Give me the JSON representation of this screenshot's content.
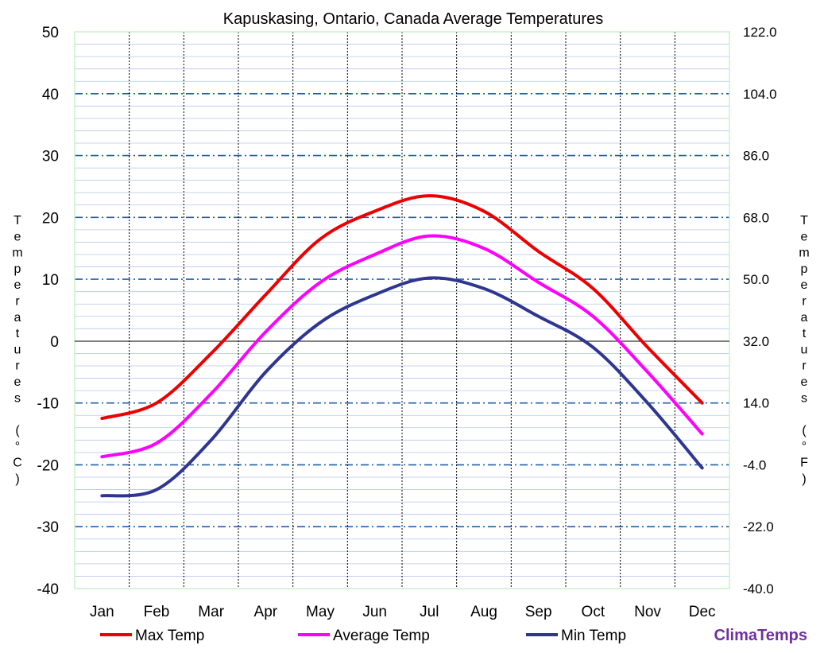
{
  "chart_data": {
    "type": "line",
    "title": "Kapuskasing, Ontario, Canada Average Temperatures",
    "categories": [
      "Jan",
      "Feb",
      "Mar",
      "Apr",
      "May",
      "Jun",
      "Jul",
      "Aug",
      "Sep",
      "Oct",
      "Nov",
      "Dec"
    ],
    "series": [
      {
        "name": "Max Temp",
        "color": "#ee0000",
        "values": [
          -12.5,
          -10,
          -2,
          7.5,
          16.5,
          21,
          23.5,
          21,
          14.5,
          8.5,
          -1,
          -10
        ]
      },
      {
        "name": "Average Temp",
        "color": "#ff00ff",
        "values": [
          -18.7,
          -16.5,
          -8.5,
          1.5,
          9.5,
          14,
          17,
          15,
          9.5,
          4,
          -5,
          -15
        ]
      },
      {
        "name": "Min Temp",
        "color": "#2e3690",
        "values": [
          -25,
          -24,
          -16,
          -5,
          3,
          7.5,
          10.2,
          8.5,
          4,
          -1,
          -10,
          -20.5
        ]
      }
    ],
    "ylabel": "Temperatures (°C)",
    "ylabel_right": "Temperatures (°F)",
    "ylim": [
      -40,
      50
    ],
    "yticks": [
      "50",
      "40",
      "30",
      "20",
      "10",
      "0",
      "-10",
      "-20",
      "-30",
      "-40"
    ],
    "yticks_right": [
      "122.0",
      "104.0",
      "86.0",
      "68.0",
      "50.0",
      "32.0",
      "14.0",
      "-4.0",
      "-22.0",
      "-40.0"
    ],
    "grid": true,
    "legend": "bottom",
    "brand": {
      "text": "ClimaTemps",
      "color": "#7030a0"
    }
  }
}
